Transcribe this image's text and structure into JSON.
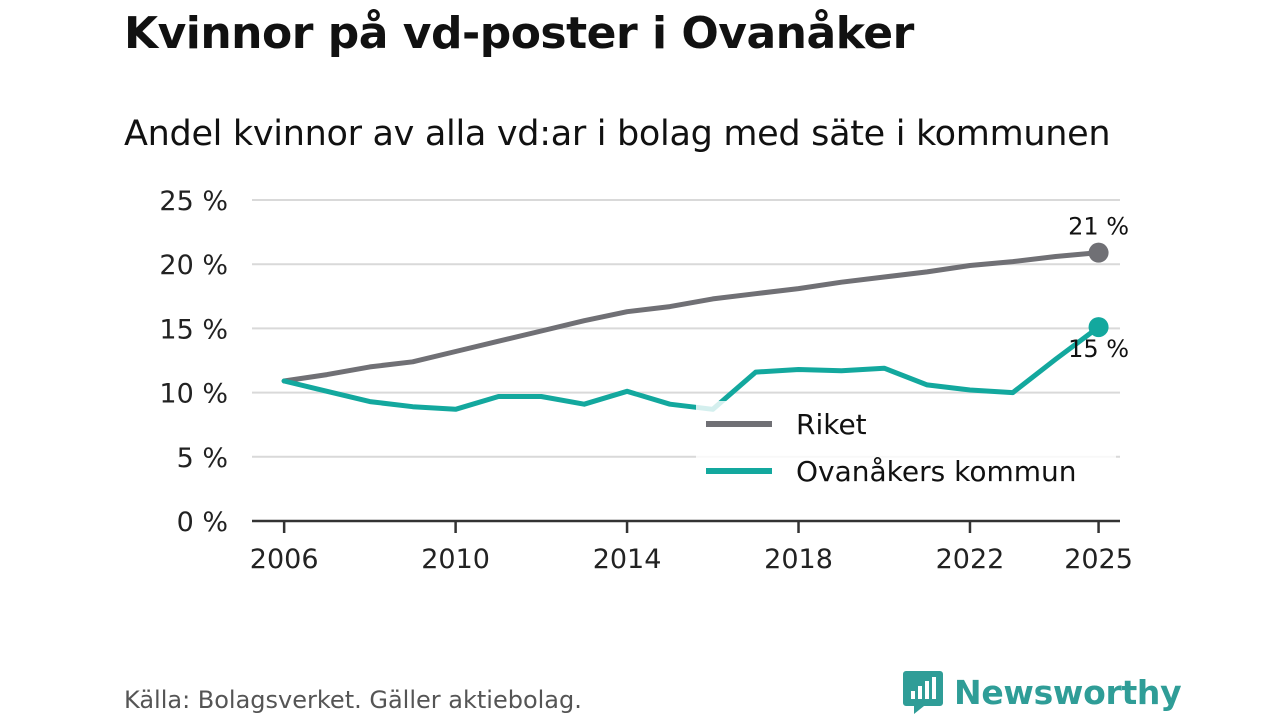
{
  "header": {
    "title": "Kvinnor på vd-poster i Ovanåker",
    "subtitle": "Andel kvinnor av alla vd:ar i bolag med säte i kommunen"
  },
  "footer": {
    "source": "Källa: Bolagsverket. Gäller aktiebolag.",
    "brand": "Newsworthy"
  },
  "colors": {
    "riket": "#707075",
    "ovanaker": "#13a89e",
    "grid": "#d9d9d9",
    "brand": "#2f9d97"
  },
  "chart_data": {
    "type": "line",
    "title": "Kvinnor på vd-poster i Ovanåker",
    "subtitle": "Andel kvinnor av alla vd:ar i bolag med säte i kommunen",
    "xlabel": "",
    "ylabel": "",
    "ylim": [
      0,
      25
    ],
    "yticks": [
      0,
      5,
      10,
      15,
      20,
      25
    ],
    "ytick_labels": [
      "0 %",
      "5 %",
      "10 %",
      "15 %",
      "20 %",
      "25 %"
    ],
    "xticks": [
      2006,
      2010,
      2014,
      2018,
      2022,
      2025
    ],
    "xtick_labels": [
      "2006",
      "2010",
      "2014",
      "2018",
      "2022",
      "2025"
    ],
    "x": [
      2006,
      2007,
      2008,
      2009,
      2010,
      2011,
      2012,
      2013,
      2014,
      2015,
      2016,
      2017,
      2018,
      2019,
      2020,
      2021,
      2022,
      2023,
      2024,
      2025
    ],
    "series": [
      {
        "name": "Riket",
        "values": [
          10.9,
          11.4,
          12.0,
          12.4,
          13.2,
          14.0,
          14.8,
          15.6,
          16.3,
          16.7,
          17.3,
          17.7,
          18.1,
          18.6,
          19.0,
          19.4,
          19.9,
          20.2,
          20.6,
          20.9
        ],
        "end_label": "21 %"
      },
      {
        "name": "Ovanåkers kommun",
        "values": [
          10.9,
          10.1,
          9.3,
          8.9,
          8.7,
          9.7,
          9.7,
          9.1,
          10.1,
          9.1,
          8.7,
          11.6,
          11.8,
          11.7,
          11.9,
          10.6,
          10.2,
          10.0,
          12.6,
          15.1
        ],
        "end_label": "15 %"
      }
    ],
    "legend": {
      "position": "bottom-right",
      "entries": [
        "Riket",
        "Ovanåkers kommun"
      ]
    },
    "grid": true
  }
}
